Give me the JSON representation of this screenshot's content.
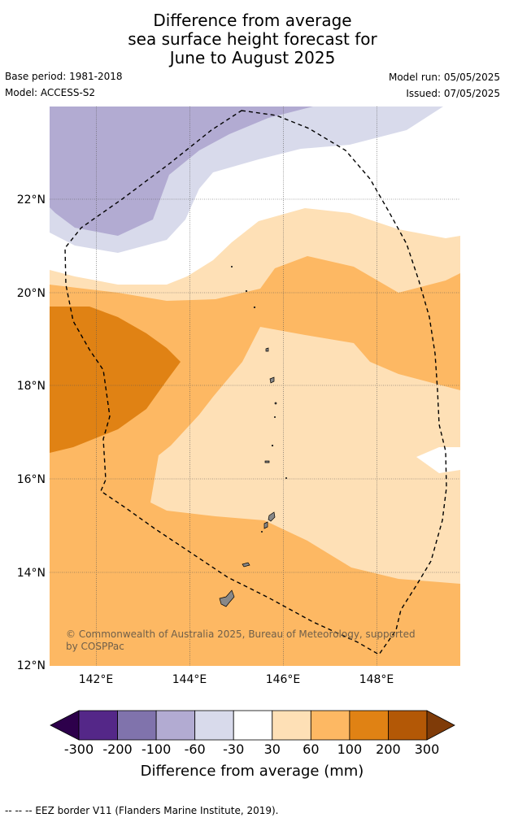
{
  "title": {
    "line1": "Difference from average",
    "line2": "sea surface height forecast for",
    "line3": "June to August 2025"
  },
  "meta": {
    "base_period": "Base period: 1981-2018",
    "model": "Model: ACCESS-S2",
    "model_run": "Model run: 05/05/2025",
    "issued": "Issued: 07/05/2025"
  },
  "map": {
    "lat_labels": [
      "22°N",
      "20°N",
      "18°N",
      "16°N",
      "14°N",
      "12°N"
    ],
    "lon_labels": [
      "142°E",
      "144°E",
      "146°E",
      "148°E"
    ],
    "copyright_line1": "© Commonwealth of Australia 2025, Bureau of Meteorology, supported",
    "copyright_line2": "by COSPPac"
  },
  "legend": {
    "tick_labels": [
      "-300",
      "-200",
      "-100",
      "-60",
      "-30",
      "30",
      "60",
      "100",
      "200",
      "300"
    ],
    "label": "Difference from average (mm)",
    "colors": [
      "#2d004b",
      "#542788",
      "#8073ac",
      "#b2abd2",
      "#d8daeb",
      "#ffffff",
      "#fee0b6",
      "#fdb863",
      "#e08214",
      "#b35806",
      "#7f3b08"
    ]
  },
  "footer": "-- -- -- EEZ border V11 (Flanders Marine Institute, 2019)."
}
